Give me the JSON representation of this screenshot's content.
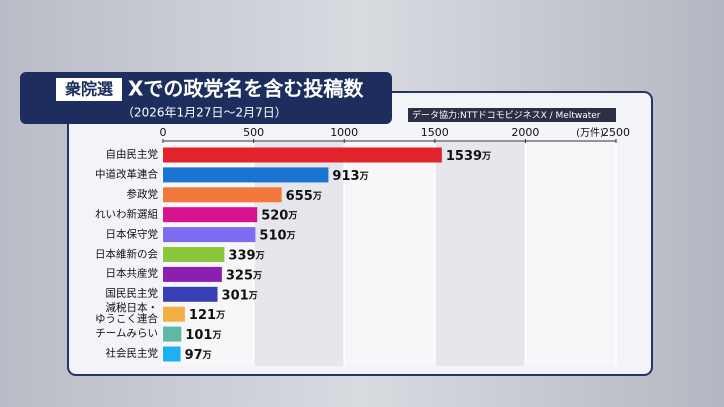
{
  "chart_data": {
    "type": "bar",
    "orientation": "horizontal",
    "tag": "衆院選",
    "title": "Xでの政党名を含む投稿数",
    "subtitle": "（2026年1月27日～2月7日）",
    "source": "データ協力:NTTドコモビジネスX / Meltwater",
    "unit": "(万件)",
    "categories": [
      "自由民主党",
      "中道改革連合",
      "参政党",
      "れいわ新選組",
      "日本保守党",
      "日本維新の会",
      "日本共産党",
      "国民民主党",
      "減税日本・\nゆうこく連合",
      "チームみらい",
      "社会民主党"
    ],
    "values": [
      1539,
      913,
      655,
      520,
      510,
      339,
      325,
      301,
      121,
      101,
      97
    ],
    "value_labels": [
      "1539万",
      "913万",
      "655万",
      "520万",
      "510万",
      "339万",
      "325万",
      "301万",
      "121万",
      "101万",
      "97万"
    ],
    "colors": [
      "#e2232b",
      "#1c74d2",
      "#f0793b",
      "#d8138f",
      "#7a6df2",
      "#8bc63f",
      "#8d1fb0",
      "#3a3fb8",
      "#f2b043",
      "#5fb9a2",
      "#1cb1f2"
    ],
    "xlim": [
      0,
      2500
    ],
    "xticks": [
      0,
      500,
      1000,
      1500,
      2000,
      2500
    ],
    "grid": true
  }
}
